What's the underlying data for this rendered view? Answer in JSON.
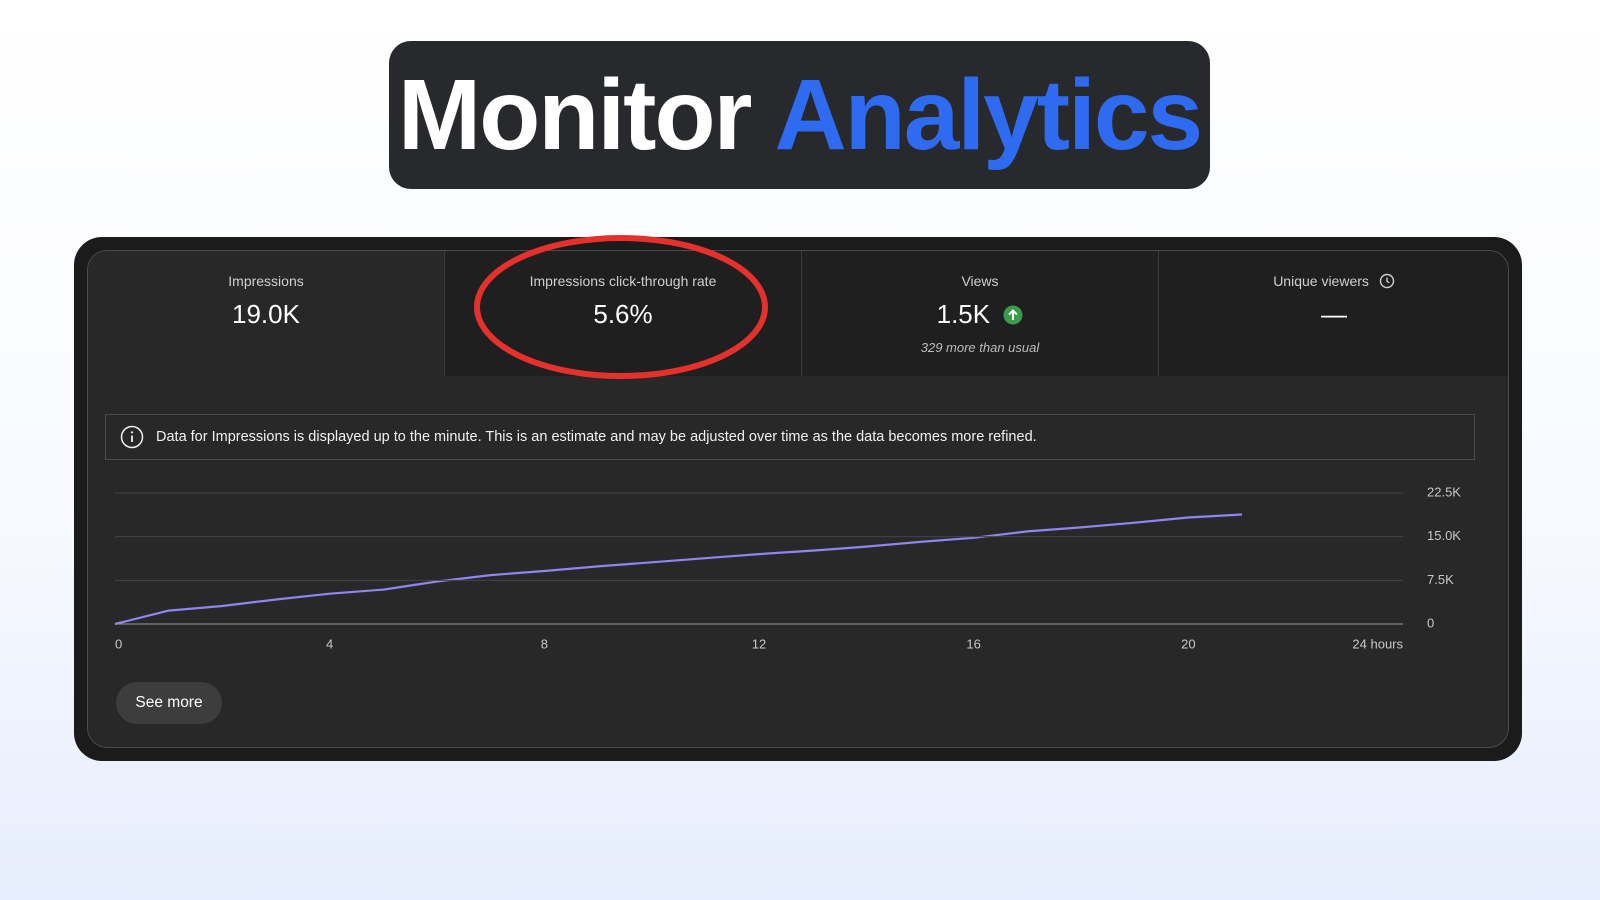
{
  "header": {
    "title": [
      "Monitor",
      "Analytics"
    ]
  },
  "metrics": [
    {
      "label": "Impressions",
      "value": "19.0K"
    },
    {
      "label": "Impressions click-through rate",
      "value": "5.6%"
    },
    {
      "label": "Views",
      "value": "1.5K",
      "note": "329 more than usual"
    },
    {
      "label": "Unique viewers",
      "value": "—"
    }
  ],
  "notice": "Data for Impressions is displayed up to the minute. This is an estimate and may be adjusted over time as the data becomes more refined.",
  "button": "See more",
  "chart_data": {
    "type": "line",
    "color": "#8f84f0",
    "grid": true,
    "x": [
      0,
      1,
      2,
      3,
      4,
      5,
      6,
      7,
      8,
      9,
      10,
      11,
      12,
      13,
      14,
      15,
      16,
      17,
      18,
      19,
      20,
      21
    ],
    "values": [
      0,
      2300,
      3100,
      4200,
      5200,
      5900,
      7300,
      8400,
      9100,
      9900,
      10600,
      11300,
      12000,
      12600,
      13300,
      14100,
      14800,
      15900,
      16600,
      17400,
      18300,
      18800
    ],
    "xlim": [
      0,
      24
    ],
    "xticks": [
      0,
      4,
      8,
      12,
      16,
      20,
      {
        "value": 24,
        "label": "24 hours"
      }
    ],
    "ylim": [
      0,
      22500
    ],
    "yticks": [
      0,
      {
        "value": 7500,
        "label": "7.5K"
      },
      {
        "value": 15000,
        "label": "15.0K"
      },
      {
        "value": 22500,
        "label": "22.5K"
      }
    ]
  }
}
